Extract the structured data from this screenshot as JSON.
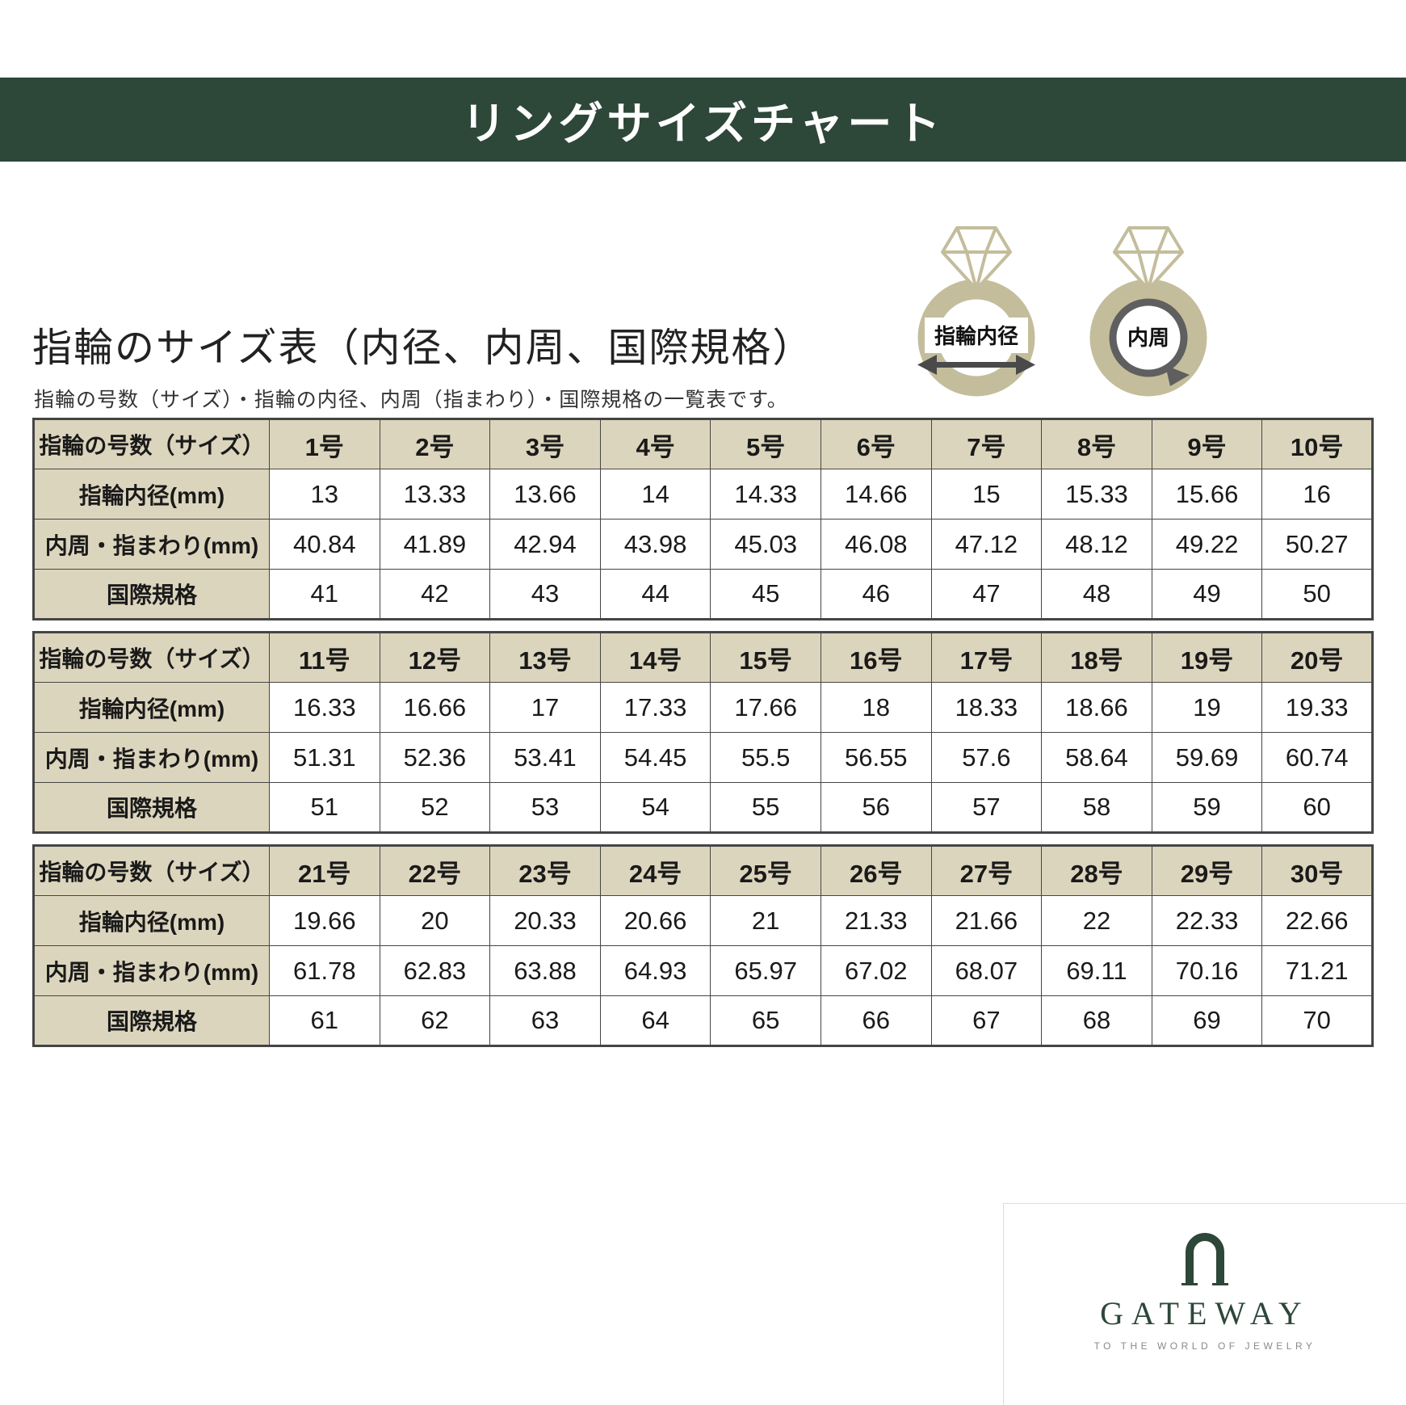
{
  "banner": {
    "title": "リングサイズチャート",
    "bg_color": "#2d4739"
  },
  "intro": {
    "title": "指輪のサイズ表（内径、内周、国際規格）",
    "subtitle": "指輪の号数（サイズ）・指輪の内径、内周（指まわり）・国際規格の一覧表です。"
  },
  "diagrams": {
    "inner_diameter_label": "指輪内径",
    "circumference_label": "内周"
  },
  "row_headers": {
    "size": "指輪の号数（サイズ）",
    "diameter": "指輪内径(mm)",
    "circumference": "内周・指まわり(mm)",
    "international": "国際規格"
  },
  "colors": {
    "banner": "#2d4739",
    "header_cell_bg": "#dcd5bd",
    "table_border": "#454545",
    "ring_band": "#c4bd9c"
  },
  "tables": [
    {
      "sizes": [
        "1号",
        "2号",
        "3号",
        "4号",
        "5号",
        "6号",
        "7号",
        "8号",
        "9号",
        "10号"
      ],
      "diameters": [
        "13",
        "13.33",
        "13.66",
        "14",
        "14.33",
        "14.66",
        "15",
        "15.33",
        "15.66",
        "16"
      ],
      "circumferences": [
        "40.84",
        "41.89",
        "42.94",
        "43.98",
        "45.03",
        "46.08",
        "47.12",
        "48.12",
        "49.22",
        "50.27"
      ],
      "international": [
        "41",
        "42",
        "43",
        "44",
        "45",
        "46",
        "47",
        "48",
        "49",
        "50"
      ]
    },
    {
      "sizes": [
        "11号",
        "12号",
        "13号",
        "14号",
        "15号",
        "16号",
        "17号",
        "18号",
        "19号",
        "20号"
      ],
      "diameters": [
        "16.33",
        "16.66",
        "17",
        "17.33",
        "17.66",
        "18",
        "18.33",
        "18.66",
        "19",
        "19.33"
      ],
      "circumferences": [
        "51.31",
        "52.36",
        "53.41",
        "54.45",
        "55.5",
        "56.55",
        "57.6",
        "58.64",
        "59.69",
        "60.74"
      ],
      "international": [
        "51",
        "52",
        "53",
        "54",
        "55",
        "56",
        "57",
        "58",
        "59",
        "60"
      ]
    },
    {
      "sizes": [
        "21号",
        "22号",
        "23号",
        "24号",
        "25号",
        "26号",
        "27号",
        "28号",
        "29号",
        "30号"
      ],
      "diameters": [
        "19.66",
        "20",
        "20.33",
        "20.66",
        "21",
        "21.33",
        "21.66",
        "22",
        "22.33",
        "22.66"
      ],
      "circumferences": [
        "61.78",
        "62.83",
        "63.88",
        "64.93",
        "65.97",
        "67.02",
        "68.07",
        "69.11",
        "70.16",
        "71.21"
      ],
      "international": [
        "61",
        "62",
        "63",
        "64",
        "65",
        "66",
        "67",
        "68",
        "69",
        "70"
      ]
    }
  ],
  "logo": {
    "name": "GATEWAY",
    "tagline": "TO THE WORLD OF JEWELRY"
  }
}
